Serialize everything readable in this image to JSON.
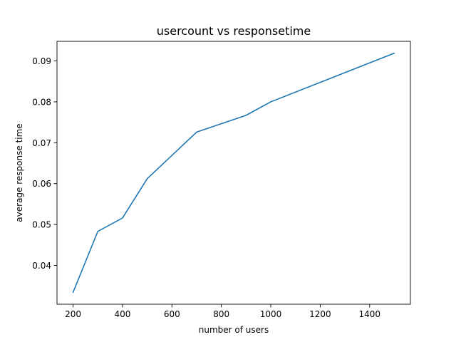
{
  "chart_data": {
    "type": "line",
    "title": "usercount vs responsetime",
    "xlabel": "number of users",
    "ylabel": "average response time",
    "x": [
      200,
      300,
      400,
      500,
      700,
      900,
      1000,
      1500
    ],
    "series": [
      {
        "values": [
          0.0334,
          0.0483,
          0.0516,
          0.0612,
          0.0726,
          0.0767,
          0.08,
          0.0919
        ],
        "color": "#1f77b4"
      }
    ],
    "xlim": [
      135,
      1565
    ],
    "ylim": [
      0.0305,
      0.0948
    ],
    "xticks": [
      200,
      400,
      600,
      800,
      1000,
      1200,
      1400
    ],
    "xtick_labels": [
      "200",
      "400",
      "600",
      "800",
      "1000",
      "1200",
      "1400"
    ],
    "yticks": [
      0.04,
      0.05,
      0.06,
      0.07,
      0.08,
      0.09
    ],
    "ytick_labels": [
      "0.04",
      "0.05",
      "0.06",
      "0.07",
      "0.08",
      "0.09"
    ],
    "grid": false,
    "legend": "none"
  }
}
